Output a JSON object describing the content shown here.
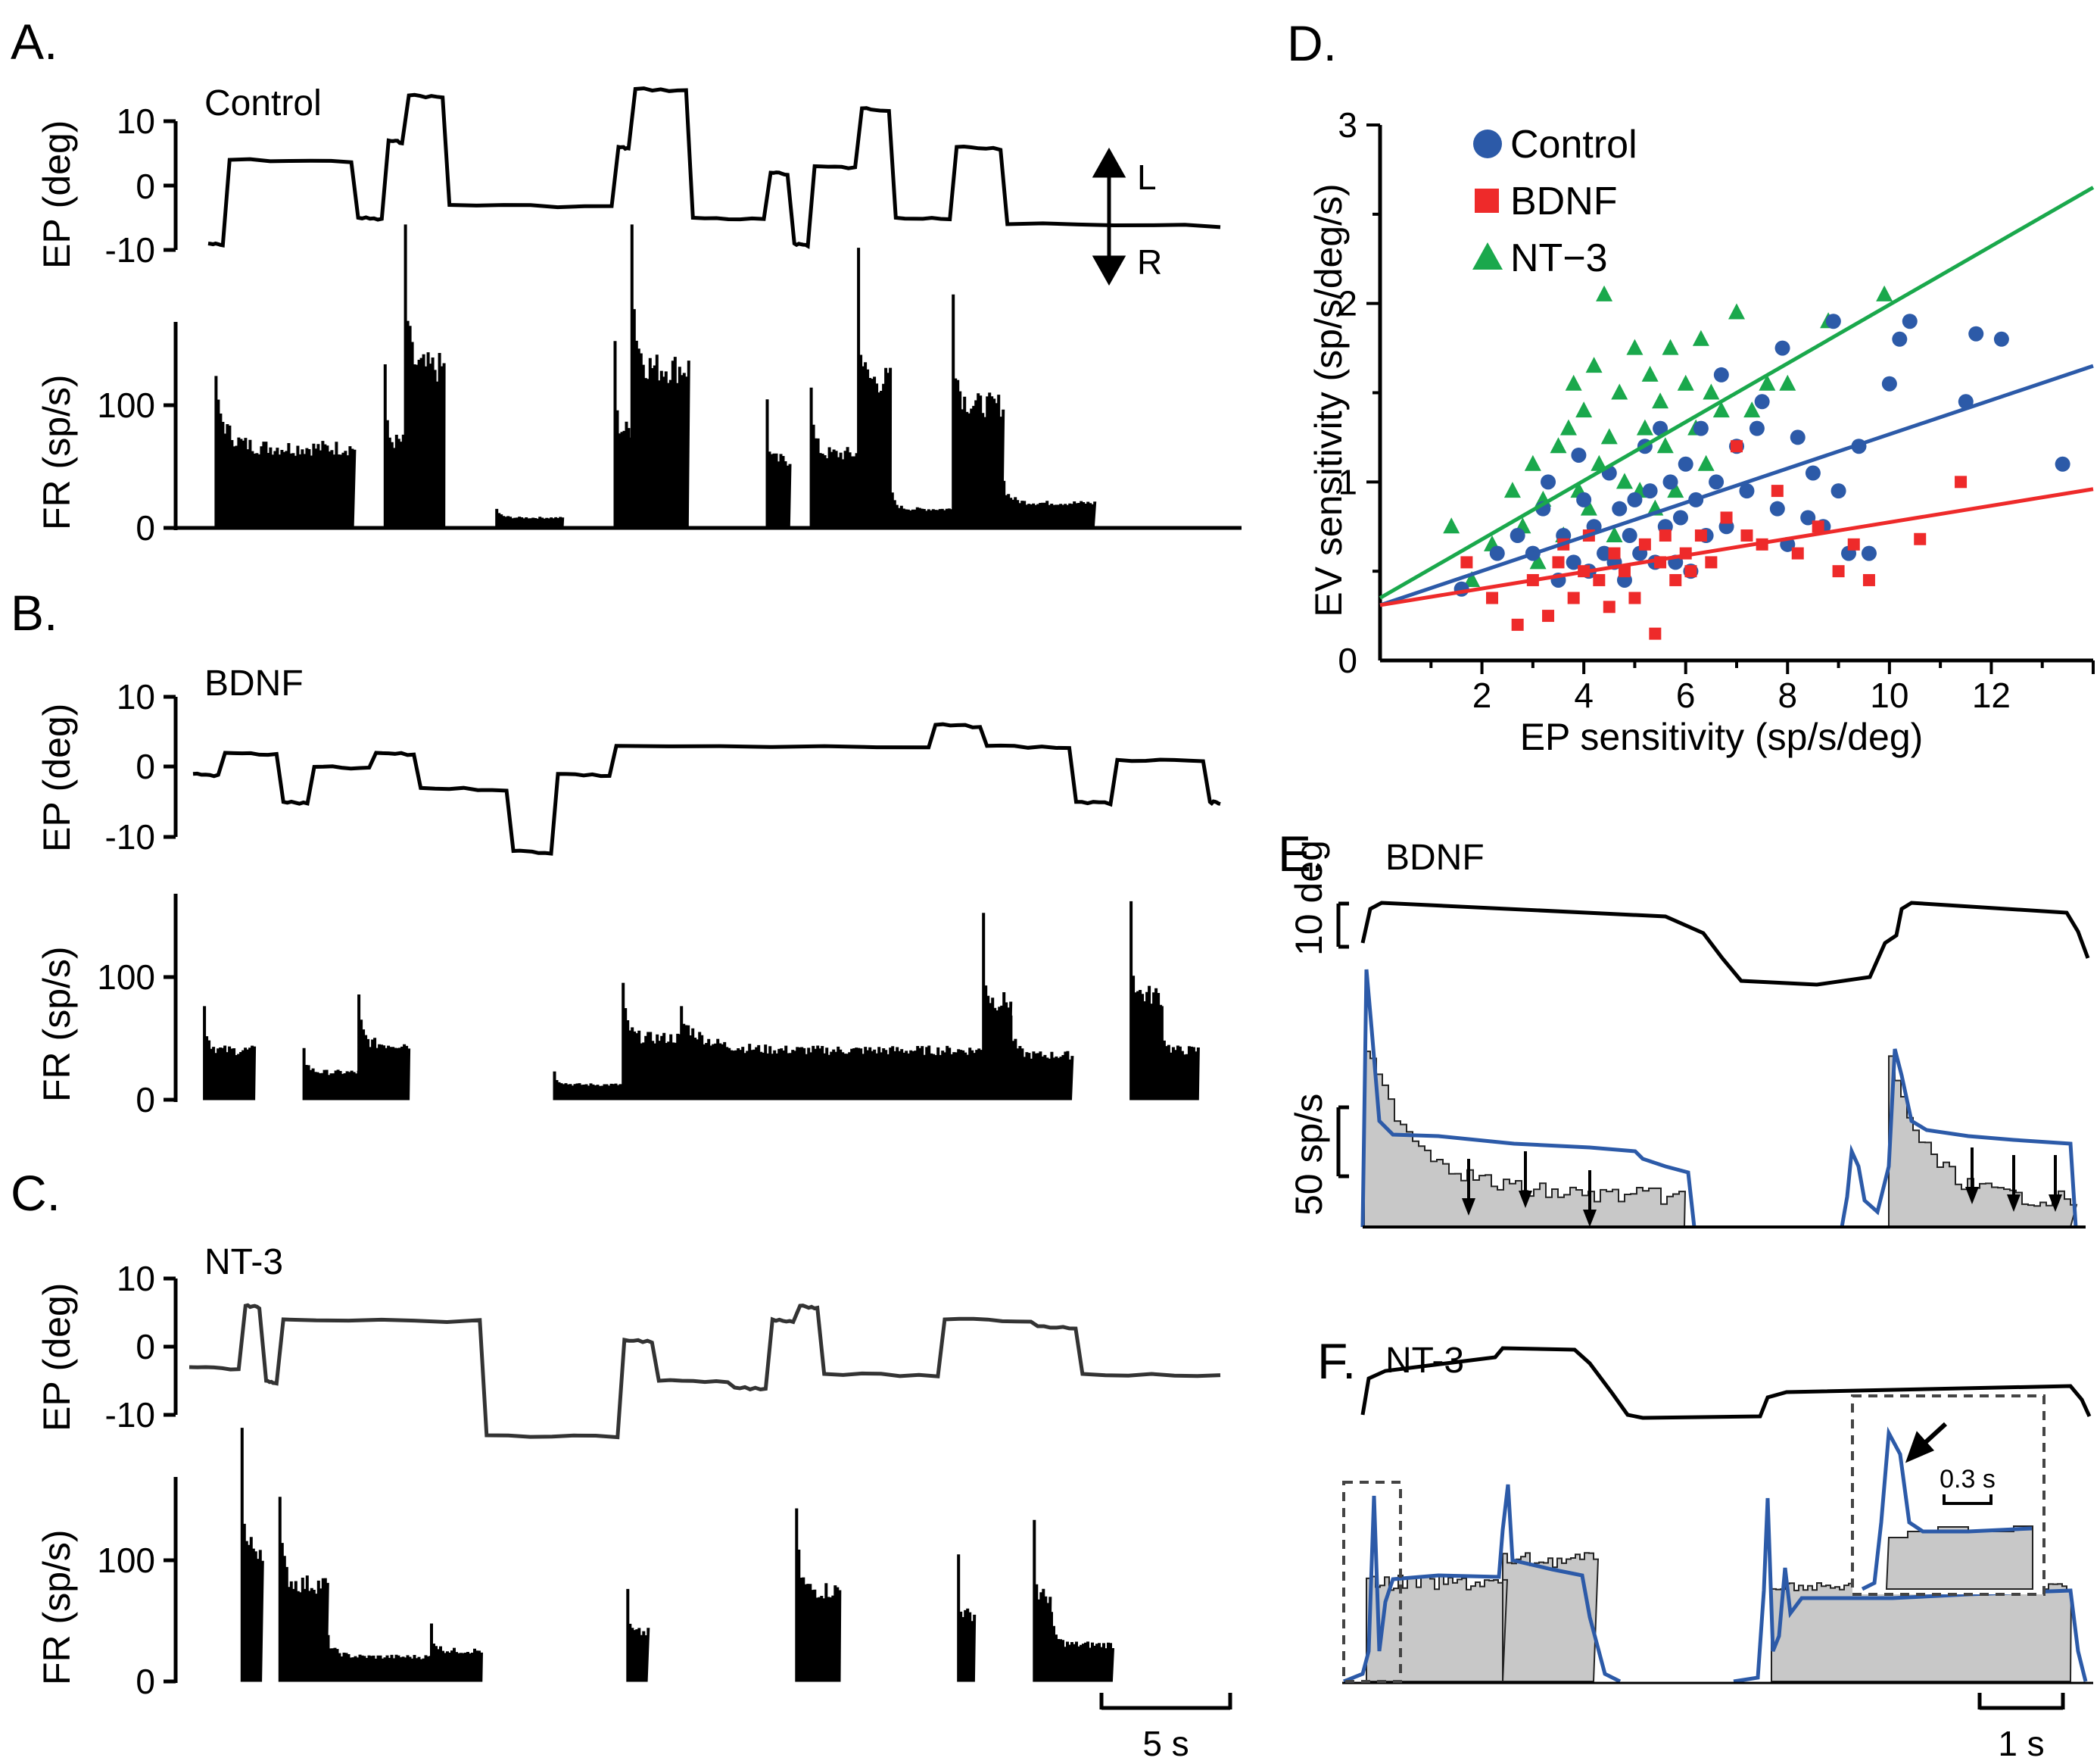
{
  "figure": {
    "panels": {
      "A": {
        "letter": "A.",
        "condition": "Control"
      },
      "B": {
        "letter": "B.",
        "condition": "BDNF"
      },
      "C": {
        "letter": "C.",
        "condition": "NT-3"
      },
      "D": {
        "letter": "D."
      },
      "E": {
        "letter": "E.",
        "condition": "BDNF"
      },
      "F": {
        "letter": "F.",
        "condition": "NT-3"
      }
    },
    "trace_axes": {
      "ep_label": "EP (deg)",
      "fr_label": "FR (sp/s)",
      "ep_ticks": [
        "10",
        "0",
        "-10"
      ],
      "fr_ticks": [
        "100",
        "0"
      ]
    },
    "direction": {
      "left": "L",
      "right": "R"
    },
    "scale_bars": {
      "time_long": "5 s",
      "time_short": "1 s",
      "inset_time": "0.3 s",
      "degrees": "10 deg",
      "rate": "50 sp/s"
    }
  },
  "chart_data": [
    {
      "type": "scatter",
      "panel": "D",
      "title": "",
      "xlabel": "EP sensitivity (sp/s/deg)",
      "ylabel": "EV sensitivity (sp/s/deg/s)",
      "xlim": [
        0,
        14
      ],
      "ylim": [
        0,
        3
      ],
      "xticks": [
        2,
        4,
        6,
        8,
        10,
        12
      ],
      "yticks": [
        0,
        1,
        2,
        3
      ],
      "legend_position": "top-left",
      "series": [
        {
          "name": "Control",
          "color": "#2c5aa8",
          "marker": "circle",
          "points": [
            [
              1.6,
              0.4
            ],
            [
              2.3,
              0.6
            ],
            [
              2.7,
              0.7
            ],
            [
              3.0,
              0.6
            ],
            [
              3.2,
              0.85
            ],
            [
              3.3,
              1.0
            ],
            [
              3.5,
              0.45
            ],
            [
              3.6,
              0.7
            ],
            [
              3.8,
              0.55
            ],
            [
              3.9,
              1.15
            ],
            [
              4.0,
              0.9
            ],
            [
              4.1,
              0.5
            ],
            [
              4.2,
              0.75
            ],
            [
              4.4,
              0.6
            ],
            [
              4.5,
              1.05
            ],
            [
              4.6,
              0.55
            ],
            [
              4.7,
              0.85
            ],
            [
              4.8,
              0.45
            ],
            [
              4.9,
              0.7
            ],
            [
              5.0,
              0.9
            ],
            [
              5.1,
              0.6
            ],
            [
              5.2,
              1.2
            ],
            [
              5.3,
              0.95
            ],
            [
              5.4,
              0.55
            ],
            [
              5.5,
              1.3
            ],
            [
              5.6,
              0.75
            ],
            [
              5.7,
              1.0
            ],
            [
              5.8,
              0.55
            ],
            [
              5.9,
              0.8
            ],
            [
              6.0,
              1.1
            ],
            [
              6.1,
              0.5
            ],
            [
              6.2,
              0.9
            ],
            [
              6.3,
              1.3
            ],
            [
              6.4,
              0.7
            ],
            [
              6.6,
              1.0
            ],
            [
              6.7,
              1.6
            ],
            [
              6.8,
              0.75
            ],
            [
              7.0,
              1.2
            ],
            [
              7.2,
              0.95
            ],
            [
              7.4,
              1.3
            ],
            [
              7.5,
              1.45
            ],
            [
              7.8,
              0.85
            ],
            [
              7.9,
              1.75
            ],
            [
              8.0,
              0.65
            ],
            [
              8.2,
              1.25
            ],
            [
              8.4,
              0.8
            ],
            [
              8.5,
              1.05
            ],
            [
              8.7,
              0.75
            ],
            [
              8.9,
              1.9
            ],
            [
              9.0,
              0.95
            ],
            [
              9.2,
              0.6
            ],
            [
              9.4,
              1.2
            ],
            [
              9.6,
              0.6
            ],
            [
              10.0,
              1.55
            ],
            [
              10.2,
              1.8
            ],
            [
              10.4,
              1.9
            ],
            [
              11.5,
              1.45
            ],
            [
              11.7,
              1.83
            ],
            [
              12.2,
              1.8
            ],
            [
              13.4,
              1.1
            ]
          ]
        },
        {
          "name": "BDNF",
          "color": "#ee2a2a",
          "marker": "square",
          "points": [
            [
              1.7,
              0.55
            ],
            [
              2.2,
              0.35
            ],
            [
              2.7,
              0.2
            ],
            [
              3.0,
              0.45
            ],
            [
              3.3,
              0.25
            ],
            [
              3.5,
              0.55
            ],
            [
              3.6,
              0.65
            ],
            [
              3.8,
              0.35
            ],
            [
              4.0,
              0.5
            ],
            [
              4.1,
              0.7
            ],
            [
              4.3,
              0.45
            ],
            [
              4.5,
              0.3
            ],
            [
              4.6,
              0.6
            ],
            [
              4.8,
              0.5
            ],
            [
              5.0,
              0.35
            ],
            [
              5.2,
              0.65
            ],
            [
              5.4,
              0.15
            ],
            [
              5.5,
              0.55
            ],
            [
              5.6,
              0.7
            ],
            [
              5.8,
              0.45
            ],
            [
              6.0,
              0.6
            ],
            [
              6.1,
              0.5
            ],
            [
              6.3,
              0.7
            ],
            [
              6.5,
              0.55
            ],
            [
              6.8,
              0.8
            ],
            [
              7.0,
              1.2
            ],
            [
              7.2,
              0.7
            ],
            [
              7.5,
              0.65
            ],
            [
              7.8,
              0.95
            ],
            [
              8.2,
              0.6
            ],
            [
              8.6,
              0.75
            ],
            [
              9.0,
              0.5
            ],
            [
              9.3,
              0.65
            ],
            [
              9.6,
              0.45
            ],
            [
              10.6,
              0.68
            ],
            [
              11.4,
              1.0
            ]
          ]
        },
        {
          "name": "NT−3",
          "color": "#1aa84c",
          "marker": "triangle",
          "points": [
            [
              1.4,
              0.75
            ],
            [
              1.8,
              0.45
            ],
            [
              2.2,
              0.65
            ],
            [
              2.6,
              0.95
            ],
            [
              2.8,
              0.75
            ],
            [
              3.0,
              1.1
            ],
            [
              3.1,
              0.55
            ],
            [
              3.2,
              0.9
            ],
            [
              3.5,
              1.2
            ],
            [
              3.6,
              0.7
            ],
            [
              3.7,
              1.3
            ],
            [
              3.8,
              1.55
            ],
            [
              3.9,
              0.95
            ],
            [
              4.0,
              1.4
            ],
            [
              4.1,
              0.85
            ],
            [
              4.2,
              1.65
            ],
            [
              4.3,
              1.1
            ],
            [
              4.4,
              2.05
            ],
            [
              4.5,
              1.25
            ],
            [
              4.6,
              0.7
            ],
            [
              4.7,
              1.5
            ],
            [
              4.8,
              1.0
            ],
            [
              5.0,
              1.75
            ],
            [
              5.1,
              0.95
            ],
            [
              5.2,
              1.3
            ],
            [
              5.3,
              1.6
            ],
            [
              5.4,
              0.85
            ],
            [
              5.5,
              1.45
            ],
            [
              5.6,
              1.2
            ],
            [
              5.7,
              1.75
            ],
            [
              5.8,
              0.95
            ],
            [
              6.0,
              1.55
            ],
            [
              6.2,
              1.3
            ],
            [
              6.3,
              1.8
            ],
            [
              6.4,
              1.1
            ],
            [
              6.5,
              1.5
            ],
            [
              6.7,
              1.4
            ],
            [
              7.0,
              1.95
            ],
            [
              7.3,
              1.4
            ],
            [
              7.6,
              1.55
            ],
            [
              8.0,
              1.55
            ],
            [
              8.8,
              1.9
            ],
            [
              9.9,
              2.05
            ]
          ]
        }
      ],
      "fit_lines": [
        {
          "series": "Control",
          "color": "#2c5aa8",
          "x": [
            0,
            14
          ],
          "y": [
            0.31,
            1.65
          ]
        },
        {
          "series": "BDNF",
          "color": "#ee2a2a",
          "x": [
            0,
            14
          ],
          "y": [
            0.31,
            0.96
          ]
        },
        {
          "series": "NT−3",
          "color": "#1aa84c",
          "x": [
            0,
            14
          ],
          "y": [
            0.35,
            2.65
          ]
        }
      ]
    },
    {
      "type": "line",
      "panel": "A",
      "description_series": "eye position (deg) and firing rate (sp/s) vs time",
      "time_range_s": [
        0,
        30
      ],
      "ep_ylim": [
        -10,
        15
      ],
      "fr_ylim": [
        0,
        160
      ],
      "ep_segments": [
        [
          0,
          0.5,
          -9
        ],
        [
          0.5,
          4.3,
          4
        ],
        [
          4.3,
          5.2,
          -5
        ],
        [
          5.2,
          5.8,
          7
        ],
        [
          5.8,
          7.0,
          14
        ],
        [
          7.0,
          12.0,
          -3
        ],
        [
          12.0,
          12.5,
          6
        ],
        [
          12.5,
          14.2,
          15
        ],
        [
          14.2,
          16.5,
          -5
        ],
        [
          16.5,
          17.2,
          2
        ],
        [
          17.2,
          17.8,
          -9
        ],
        [
          17.8,
          19.2,
          3
        ],
        [
          19.2,
          20.2,
          12
        ],
        [
          20.2,
          22.0,
          -5
        ],
        [
          22.0,
          23.5,
          6
        ],
        [
          23.5,
          30.0,
          -6
        ]
      ],
      "fr_segments": [
        [
          0.2,
          4.3,
          65
        ],
        [
          5.2,
          5.8,
          70
        ],
        [
          5.8,
          7.0,
          130
        ],
        [
          8.5,
          10.5,
          8
        ],
        [
          12.0,
          12.5,
          80
        ],
        [
          12.5,
          14.2,
          130
        ],
        [
          16.5,
          17.2,
          55
        ],
        [
          17.8,
          19.2,
          60
        ],
        [
          19.2,
          20.2,
          120
        ],
        [
          20.2,
          22.0,
          15
        ],
        [
          22.0,
          23.5,
          100
        ],
        [
          23.5,
          26.2,
          20
        ]
      ]
    },
    {
      "type": "line",
      "panel": "B",
      "time_range_s": [
        0,
        30
      ],
      "ep_ylim": [
        -13,
        10
      ],
      "fr_ylim": [
        0,
        160
      ],
      "ep_segments": [
        [
          0,
          0.8,
          -1
        ],
        [
          0.8,
          2.5,
          2
        ],
        [
          2.5,
          3.4,
          -5
        ],
        [
          3.4,
          5.2,
          0
        ],
        [
          5.2,
          6.5,
          2
        ],
        [
          6.5,
          9.2,
          -3
        ],
        [
          9.2,
          10.5,
          -12
        ],
        [
          10.5,
          12.2,
          -1
        ],
        [
          12.2,
          21.5,
          3
        ],
        [
          21.5,
          23.0,
          6
        ],
        [
          23.0,
          25.6,
          3
        ],
        [
          25.6,
          26.8,
          -5
        ],
        [
          26.8,
          29.5,
          1
        ],
        [
          29.5,
          30,
          -5
        ]
      ],
      "fr_segments": [
        [
          0.3,
          1.8,
          40
        ],
        [
          3.2,
          4.8,
          22
        ],
        [
          4.8,
          6.3,
          45
        ],
        [
          10.5,
          12.5,
          12
        ],
        [
          12.5,
          14.2,
          50
        ],
        [
          14.2,
          23.0,
          40
        ],
        [
          23.0,
          23.8,
          80
        ],
        [
          23.8,
          25.6,
          36
        ],
        [
          27.3,
          28.2,
          85
        ],
        [
          28.2,
          29.3,
          40
        ]
      ]
    },
    {
      "type": "line",
      "panel": "C",
      "time_range_s": [
        0,
        30
      ],
      "ep_ylim": [
        -15,
        10
      ],
      "fr_ylim": [
        0,
        160
      ],
      "ep_segments": [
        [
          0,
          1.5,
          -3
        ],
        [
          1.5,
          2.1,
          6
        ],
        [
          2.1,
          2.6,
          -5
        ],
        [
          2.6,
          8.5,
          4
        ],
        [
          8.5,
          12.5,
          -13
        ],
        [
          12.5,
          13.5,
          1
        ],
        [
          13.5,
          15.7,
          -5
        ],
        [
          15.7,
          16.8,
          -6
        ],
        [
          16.8,
          17.6,
          4
        ],
        [
          17.6,
          18.3,
          6
        ],
        [
          18.3,
          21.8,
          -4
        ],
        [
          21.8,
          24.5,
          4
        ],
        [
          24.5,
          25.8,
          3
        ],
        [
          25.8,
          30.0,
          -4
        ]
      ],
      "fr_segments": [
        [
          1.5,
          2.1,
          110
        ],
        [
          2.6,
          4.0,
          80
        ],
        [
          4.0,
          7.0,
          20
        ],
        [
          7.0,
          8.5,
          25
        ],
        [
          12.7,
          13.3,
          40
        ],
        [
          17.6,
          18.9,
          75
        ],
        [
          22.3,
          22.8,
          55
        ],
        [
          24.5,
          25.0,
          70
        ],
        [
          25.0,
          26.8,
          30
        ]
      ]
    }
  ]
}
